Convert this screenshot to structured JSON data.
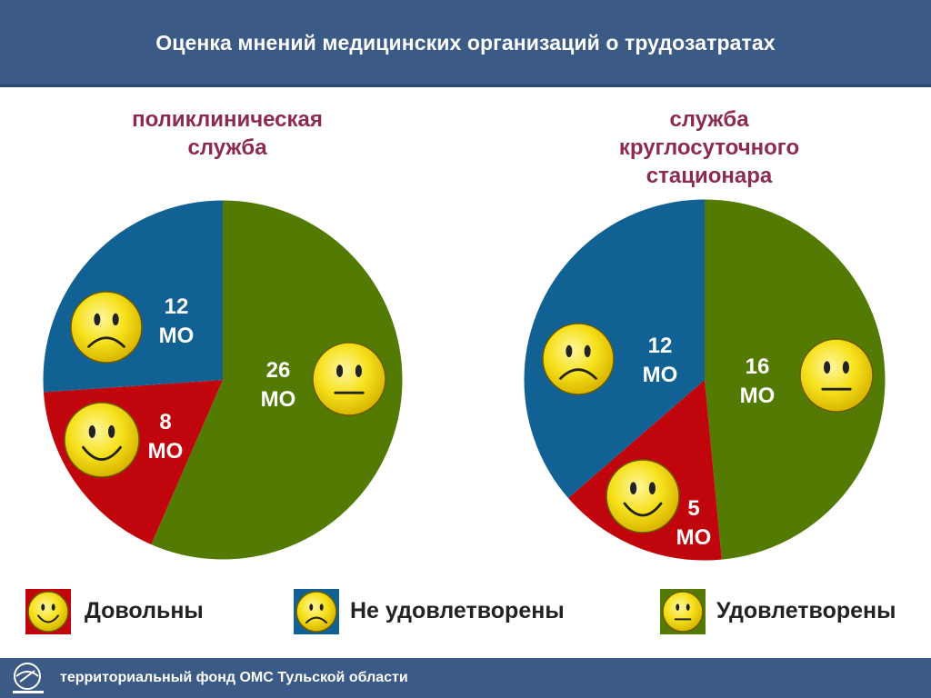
{
  "header": {
    "title": "Оценка мнений медицинских организаций о трудозатратах"
  },
  "colors": {
    "satisfied": "#537b03",
    "not_satisfied": "#116195",
    "pleased": "#c0050d",
    "header_bg": "#3b5b86",
    "chart_title": "#8c2a52"
  },
  "chart_data": [
    {
      "type": "pie",
      "title": "поликлиническая служба",
      "title_lines": [
        "поликлиническая",
        "служба"
      ],
      "slices": [
        {
          "name": "Удовлетворены",
          "value": 26,
          "label_num": "26",
          "label_unit": "МО",
          "face": "neutral-face-icon"
        },
        {
          "name": "Довольны",
          "value": 8,
          "label_num": "8",
          "label_unit": "МО",
          "face": "smiling-face-icon"
        },
        {
          "name": "Не удовлетворены",
          "value": 12,
          "label_num": "12",
          "label_unit": "МО",
          "face": "sad-face-icon"
        }
      ]
    },
    {
      "type": "pie",
      "title": "служба круглосуточного стационара",
      "title_lines": [
        "служба",
        "круглосуточного",
        "стационара"
      ],
      "slices": [
        {
          "name": "Удовлетворены",
          "value": 16,
          "label_num": "16",
          "label_unit": "МО",
          "face": "neutral-face-icon"
        },
        {
          "name": "Довольны",
          "value": 5,
          "label_num": "5",
          "label_unit": "МО",
          "face": "smiling-face-icon"
        },
        {
          "name": "Не удовлетворены",
          "value": 12,
          "label_num": "12",
          "label_unit": "МО",
          "face": "sad-face-icon"
        }
      ]
    }
  ],
  "legend": [
    {
      "label": "Довольны",
      "face": "smiling-face-icon"
    },
    {
      "label": "Не удовлетворены",
      "face": "sad-face-icon"
    },
    {
      "label": "Удовлетворены",
      "face": "neutral-face-icon"
    }
  ],
  "footer": {
    "text": "территориальный фонд ОМС Тульской области"
  }
}
